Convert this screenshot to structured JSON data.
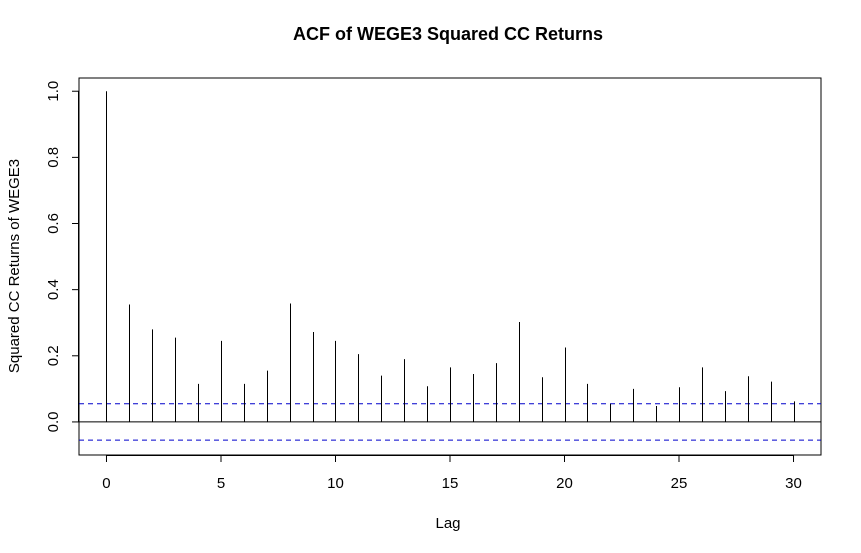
{
  "chart_data": {
    "type": "bar",
    "title": "ACF of WEGE3 Squared CC Returns",
    "xlabel": "Lag",
    "ylabel": "Squared CC Returns of WEGE3",
    "x": [
      0,
      1,
      2,
      3,
      4,
      5,
      6,
      7,
      8,
      9,
      10,
      11,
      12,
      13,
      14,
      15,
      16,
      17,
      18,
      19,
      20,
      21,
      22,
      23,
      24,
      25,
      26,
      27,
      28,
      29,
      30
    ],
    "values": [
      1.0,
      0.355,
      0.28,
      0.255,
      0.115,
      0.245,
      0.115,
      0.155,
      0.358,
      0.272,
      0.245,
      0.205,
      0.14,
      0.19,
      0.108,
      0.165,
      0.145,
      0.178,
      0.302,
      0.135,
      0.225,
      0.115,
      0.055,
      0.1,
      0.048,
      0.105,
      0.165,
      0.093,
      0.138,
      0.122,
      0.062
    ],
    "confidence_band": 0.055,
    "xlim": [
      -1.2,
      31.2
    ],
    "ylim": [
      -0.1,
      1.04
    ],
    "xticks": [
      "0",
      "5",
      "10",
      "15",
      "20",
      "25",
      "30"
    ],
    "yticks": [
      "0.0",
      "0.2",
      "0.4",
      "0.6",
      "0.8",
      "1.0"
    ],
    "colors": {
      "spike": "#000000",
      "band": "#0000cc",
      "zero_line": "#000000"
    },
    "grid": false,
    "legend": "none"
  }
}
